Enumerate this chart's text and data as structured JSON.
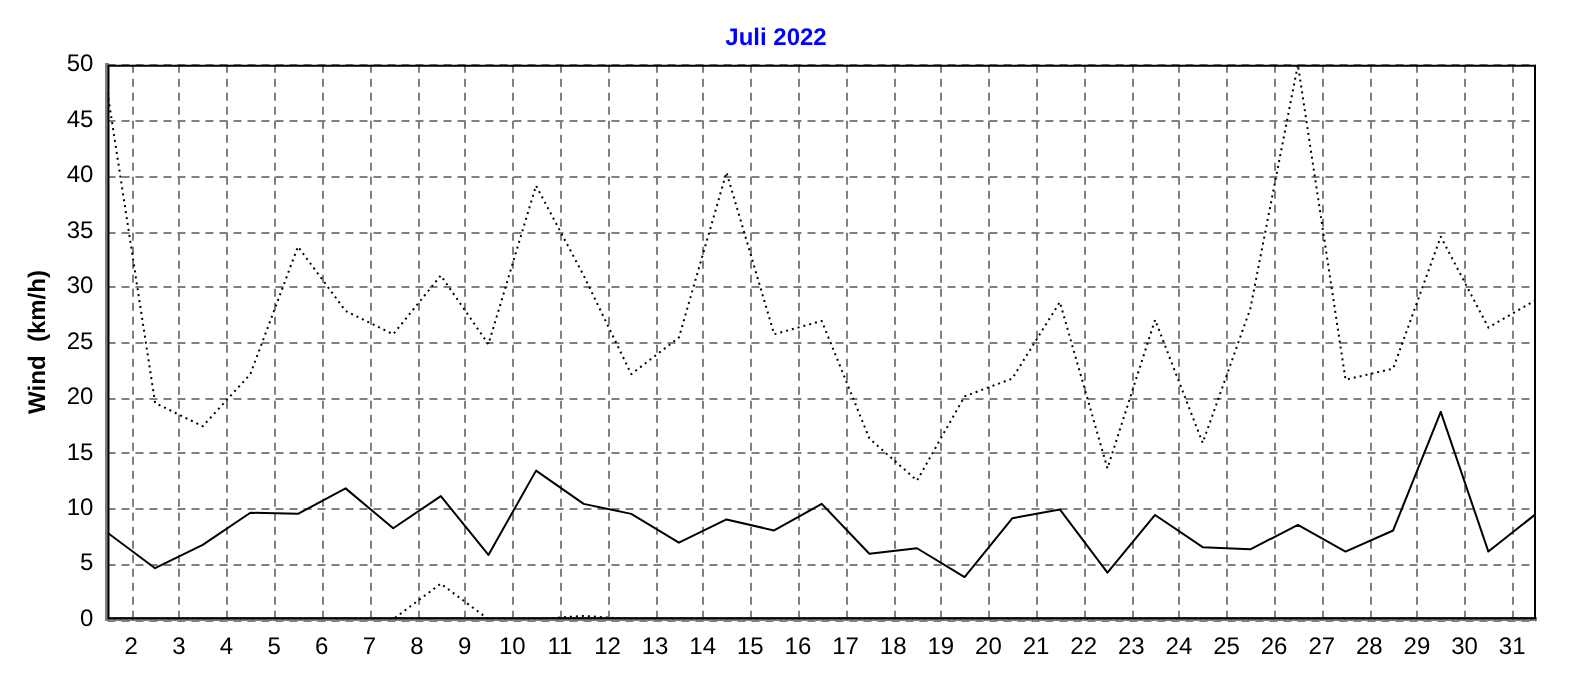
{
  "chart_data": {
    "type": "line",
    "title": "Juli 2022",
    "ylabel": "Wind  (km/h)",
    "x": [
      1.5,
      2.5,
      3.5,
      4.5,
      5.5,
      6.5,
      7.5,
      8.5,
      9.5,
      10.5,
      11.5,
      12.5,
      13.5,
      14.5,
      15.5,
      16.5,
      17.5,
      18.5,
      19.5,
      20.5,
      21.5,
      22.5,
      23.5,
      24.5,
      25.5,
      26.5,
      27.5,
      28.5,
      29.5,
      30.5,
      31.5
    ],
    "series": [
      {
        "color": "#000000",
        "line_style": "dotted",
        "values": [
          47.5,
          19.5,
          17.4,
          22.1,
          33.6,
          27.8,
          25.7,
          31.0,
          24.8,
          39.1,
          31.0,
          22.1,
          25.4,
          40.3,
          25.7,
          26.9,
          16.3,
          12.5,
          20.1,
          21.7,
          28.6,
          13.6,
          27.0,
          15.9,
          28.0,
          50.0,
          21.6,
          22.6,
          34.5,
          26.3,
          28.8
        ]
      },
      {
        "color": "#000000",
        "line_style": "solid",
        "values": [
          7.8,
          4.6,
          6.7,
          9.6,
          9.5,
          11.8,
          8.2,
          11.1,
          5.8,
          13.4,
          10.4,
          9.5,
          6.9,
          9.0,
          8.0,
          10.4,
          5.9,
          6.4,
          3.8,
          9.1,
          9.9,
          4.2,
          9.4,
          6.5,
          6.3,
          8.5,
          6.1,
          8.0,
          18.7,
          6.1,
          9.5
        ]
      },
      {
        "color": "#000000",
        "line_style": "dotted",
        "values": [
          0,
          0,
          0,
          0,
          0,
          0,
          0,
          3.2,
          0,
          0,
          0.3,
          0,
          0,
          0,
          0,
          0,
          0,
          0,
          0,
          0,
          0,
          0,
          0,
          0,
          0,
          0,
          0,
          0,
          0,
          0,
          0
        ]
      }
    ],
    "xlim": [
      1.5,
      31.5
    ],
    "xticks": [
      2,
      3,
      4,
      5,
      6,
      7,
      8,
      9,
      10,
      11,
      12,
      13,
      14,
      15,
      16,
      17,
      18,
      19,
      20,
      21,
      22,
      23,
      24,
      25,
      26,
      27,
      28,
      29,
      30,
      31
    ],
    "ylim": [
      0,
      50
    ],
    "yticks": [
      0,
      5,
      10,
      15,
      20,
      25,
      30,
      35,
      40,
      45,
      50
    ],
    "grid": true,
    "legend": false,
    "marker": "none"
  }
}
